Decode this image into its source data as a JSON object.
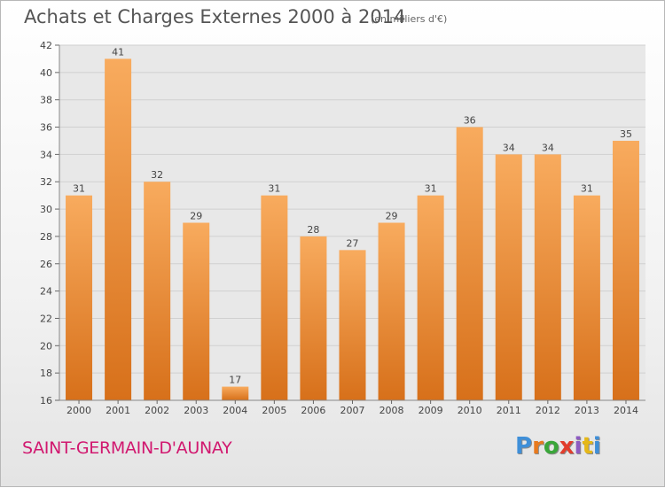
{
  "header": {
    "title": "Achats et Charges Externes 2000 à 2014",
    "subtitle": "(en milliers d'€)"
  },
  "footer": {
    "commune": "SAINT-GERMAIN-D'AUNAY",
    "logo_text": "Proxiti",
    "logo_colors": [
      "#3f8fd8",
      "#e87a1e",
      "#3aa63a",
      "#e23d2c",
      "#8d5bc1",
      "#e6b817",
      "#3f8fd8"
    ]
  },
  "chart_data": {
    "type": "bar",
    "categories": [
      "2000",
      "2001",
      "2002",
      "2003",
      "2004",
      "2005",
      "2006",
      "2007",
      "2008",
      "2009",
      "2010",
      "2011",
      "2012",
      "2013",
      "2014"
    ],
    "values": [
      31,
      41,
      32,
      29,
      17,
      31,
      28,
      27,
      29,
      31,
      36,
      34,
      34,
      31,
      35
    ],
    "ylim": [
      16,
      42
    ],
    "yticks": [
      16,
      18,
      20,
      22,
      24,
      26,
      28,
      30,
      32,
      34,
      36,
      38,
      40,
      42
    ],
    "grid": true,
    "colors": {
      "bar_light": "#f8ab5e",
      "bar_dark": "#d7701a",
      "grid": "#d0d0d0"
    }
  }
}
